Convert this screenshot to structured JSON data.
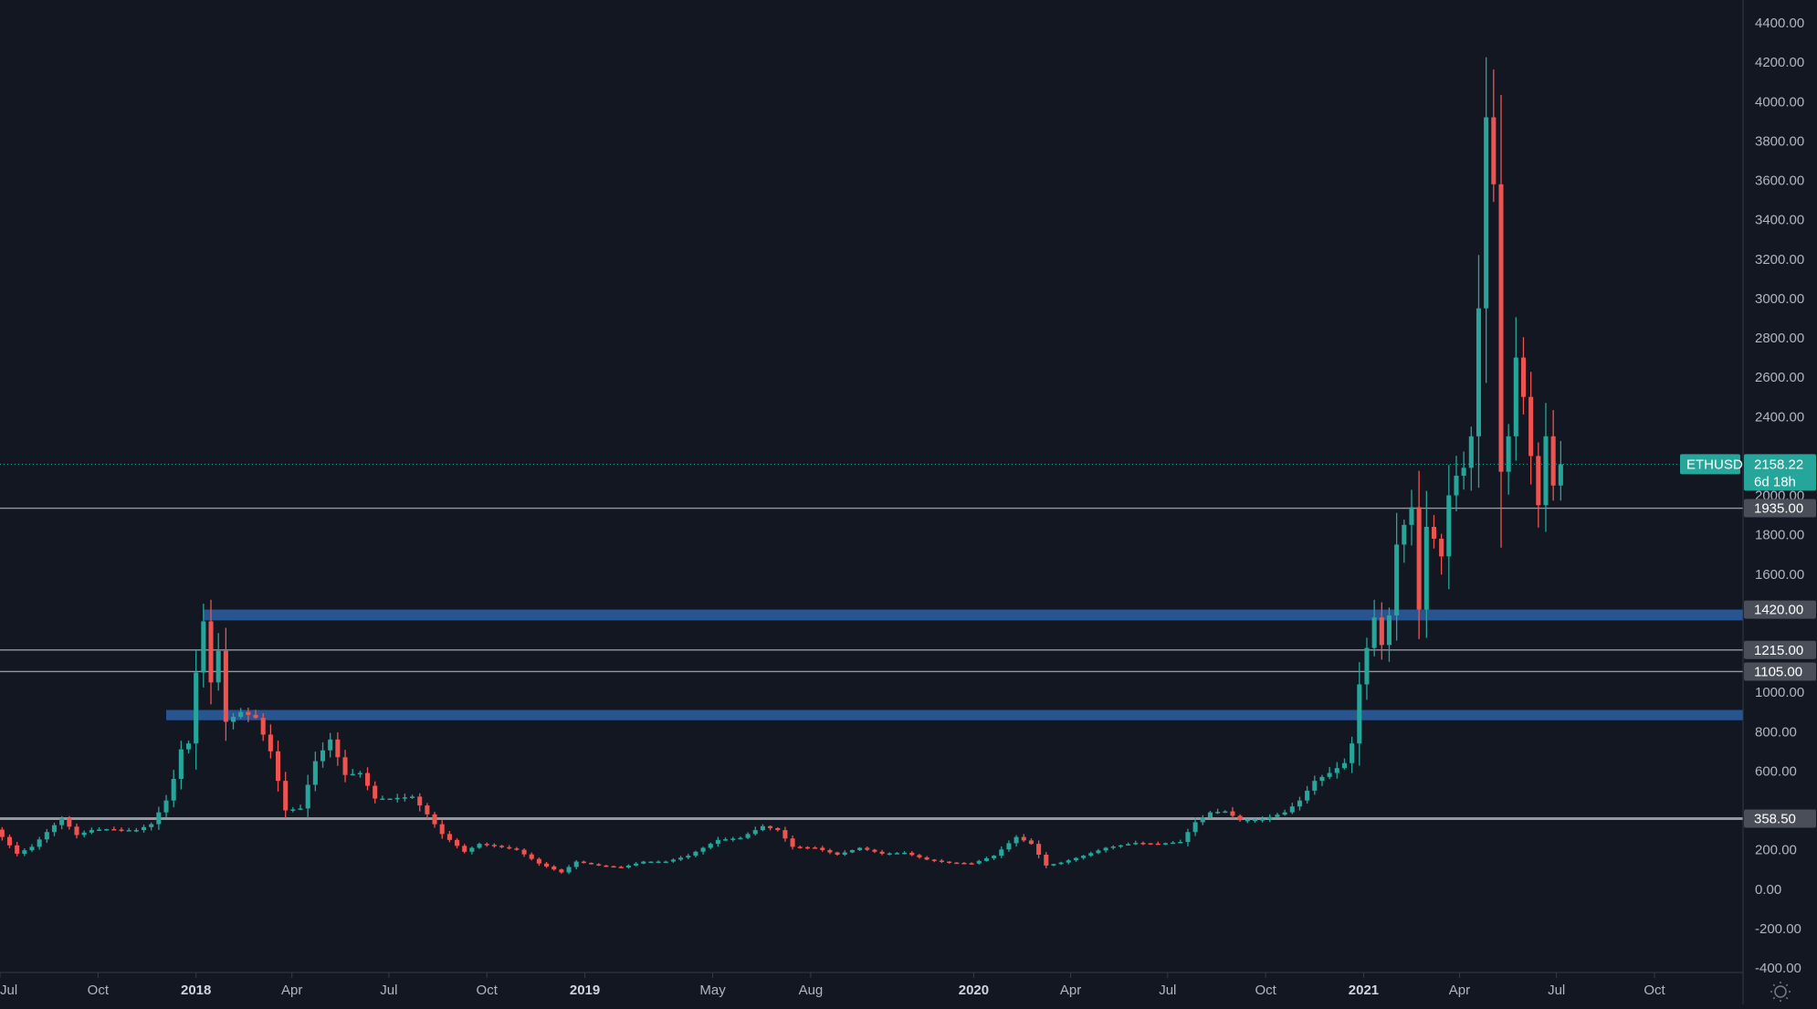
{
  "chart_data": {
    "type": "candlestick",
    "symbol": "ETHUSD",
    "y_axis": {
      "min": -400,
      "max": 4400,
      "ticks": [
        "4400.00",
        "4200.00",
        "4000.00",
        "3800.00",
        "3600.00",
        "3400.00",
        "3200.00",
        "3000.00",
        "2800.00",
        "2600.00",
        "2400.00",
        "2000.00",
        "1800.00",
        "1600.00",
        "1000.00",
        "800.00",
        "600.00",
        "200.00",
        "0.00",
        "-200.00",
        "-400.00"
      ]
    },
    "x_axis": {
      "ticks": [
        {
          "label": "Jul",
          "date": "2017-07-01",
          "bold": false
        },
        {
          "label": "Oct",
          "date": "2017-10-01",
          "bold": false
        },
        {
          "label": "2018",
          "date": "2018-01-01",
          "bold": true
        },
        {
          "label": "Apr",
          "date": "2018-04-01",
          "bold": false
        },
        {
          "label": "Jul",
          "date": "2018-07-01",
          "bold": false
        },
        {
          "label": "Oct",
          "date": "2018-10-01",
          "bold": false
        },
        {
          "label": "2019",
          "date": "2019-01-01",
          "bold": true
        },
        {
          "label": "May",
          "date": "2019-05-01",
          "bold": false
        },
        {
          "label": "Aug",
          "date": "2019-08-01",
          "bold": false
        },
        {
          "label": "2020",
          "date": "2020-01-01",
          "bold": true
        },
        {
          "label": "Apr",
          "date": "2020-04-01",
          "bold": false
        },
        {
          "label": "Jul",
          "date": "2020-07-01",
          "bold": false
        },
        {
          "label": "Oct",
          "date": "2020-10-01",
          "bold": false
        },
        {
          "label": "2021",
          "date": "2021-01-01",
          "bold": true
        },
        {
          "label": "Apr",
          "date": "2021-04-01",
          "bold": false
        },
        {
          "label": "Jul",
          "date": "2021-07-01",
          "bold": false
        },
        {
          "label": "Oct",
          "date": "2021-10-01",
          "bold": false
        }
      ]
    },
    "last_price": {
      "value": 2158.22,
      "label": "2158.22",
      "countdown": "6d 18h"
    },
    "levels": [
      {
        "value": 1935,
        "label": "1935.00",
        "kind": "line"
      },
      {
        "value": 1420,
        "label": "1420.00",
        "kind": "zone",
        "from": 1365,
        "to": 1420,
        "start_date": "2018-01-08"
      },
      {
        "value": 1215,
        "label": "1215.00",
        "kind": "line"
      },
      {
        "value": 1105,
        "label": "1105.00",
        "kind": "line"
      },
      {
        "value": 900,
        "label": "",
        "kind": "zone",
        "from": 858,
        "to": 910,
        "start_date": "2017-12-04"
      },
      {
        "value": 358.5,
        "label": "358.50",
        "kind": "line"
      }
    ],
    "colors": {
      "background": "#131722",
      "up": "#26a69a",
      "down": "#ef5350",
      "zone": "#2a5a9a",
      "level_line": "#9598a1",
      "last_price": "#26a69a"
    },
    "anchors": [
      [
        "2017-06-19",
        340
      ],
      [
        "2017-07-03",
        265
      ],
      [
        "2017-07-17",
        180
      ],
      [
        "2017-07-31",
        215
      ],
      [
        "2017-08-14",
        290
      ],
      [
        "2017-08-28",
        360
      ],
      [
        "2017-09-11",
        275
      ],
      [
        "2017-09-25",
        300
      ],
      [
        "2017-10-09",
        305
      ],
      [
        "2017-10-23",
        300
      ],
      [
        "2017-11-06",
        300
      ],
      [
        "2017-11-20",
        330
      ],
      [
        "2017-12-04",
        450
      ],
      [
        "2017-12-11",
        560
      ],
      [
        "2017-12-18",
        710
      ],
      [
        "2017-12-25",
        740
      ],
      [
        "2018-01-01",
        1100
      ],
      [
        "2018-01-08",
        1360
      ],
      [
        "2018-01-15",
        1050
      ],
      [
        "2018-01-22",
        1210
      ],
      [
        "2018-01-29",
        850
      ],
      [
        "2018-02-12",
        900
      ],
      [
        "2018-02-26",
        870
      ],
      [
        "2018-03-12",
        700
      ],
      [
        "2018-03-26",
        400
      ],
      [
        "2018-04-09",
        410
      ],
      [
        "2018-04-23",
        650
      ],
      [
        "2018-05-07",
        760
      ],
      [
        "2018-05-21",
        580
      ],
      [
        "2018-06-04",
        590
      ],
      [
        "2018-06-18",
        460
      ],
      [
        "2018-07-02",
        460
      ],
      [
        "2018-07-23",
        470
      ],
      [
        "2018-08-06",
        380
      ],
      [
        "2018-08-20",
        280
      ],
      [
        "2018-09-10",
        190
      ],
      [
        "2018-09-24",
        230
      ],
      [
        "2018-10-08",
        220
      ],
      [
        "2018-10-29",
        200
      ],
      [
        "2018-11-19",
        130
      ],
      [
        "2018-12-10",
        85
      ],
      [
        "2018-12-24",
        140
      ],
      [
        "2019-01-14",
        120
      ],
      [
        "2019-02-04",
        110
      ],
      [
        "2019-02-25",
        140
      ],
      [
        "2019-03-18",
        140
      ],
      [
        "2019-04-08",
        170
      ],
      [
        "2019-05-06",
        250
      ],
      [
        "2019-05-27",
        260
      ],
      [
        "2019-06-17",
        320
      ],
      [
        "2019-07-01",
        300
      ],
      [
        "2019-07-15",
        215
      ],
      [
        "2019-08-05",
        210
      ],
      [
        "2019-08-26",
        175
      ],
      [
        "2019-09-16",
        210
      ],
      [
        "2019-10-07",
        180
      ],
      [
        "2019-10-28",
        185
      ],
      [
        "2019-11-18",
        150
      ],
      [
        "2019-12-09",
        135
      ],
      [
        "2019-12-30",
        130
      ],
      [
        "2020-01-20",
        170
      ],
      [
        "2020-02-10",
        265
      ],
      [
        "2020-02-24",
        230
      ],
      [
        "2020-03-09",
        120
      ],
      [
        "2020-03-23",
        135
      ],
      [
        "2020-04-13",
        170
      ],
      [
        "2020-05-04",
        210
      ],
      [
        "2020-06-01",
        235
      ],
      [
        "2020-06-22",
        230
      ],
      [
        "2020-07-13",
        240
      ],
      [
        "2020-07-27",
        340
      ],
      [
        "2020-08-10",
        390
      ],
      [
        "2020-08-24",
        395
      ],
      [
        "2020-09-07",
        350
      ],
      [
        "2020-09-28",
        355
      ],
      [
        "2020-10-19",
        390
      ],
      [
        "2020-11-02",
        450
      ],
      [
        "2020-11-16",
        550
      ],
      [
        "2020-11-30",
        590
      ],
      [
        "2020-12-14",
        640
      ],
      [
        "2020-12-21",
        740
      ],
      [
        "2020-12-28",
        1040
      ],
      [
        "2021-01-04",
        1225
      ],
      [
        "2021-01-11",
        1380
      ],
      [
        "2021-01-18",
        1240
      ],
      [
        "2021-01-25",
        1390
      ],
      [
        "2021-02-01",
        1750
      ],
      [
        "2021-02-08",
        1850
      ],
      [
        "2021-02-15",
        1940
      ],
      [
        "2021-02-22",
        1420
      ],
      [
        "2021-03-01",
        1840
      ],
      [
        "2021-03-08",
        1780
      ],
      [
        "2021-03-15",
        1690
      ],
      [
        "2021-03-22",
        2000
      ],
      [
        "2021-03-29",
        2100
      ],
      [
        "2021-04-05",
        2140
      ],
      [
        "2021-04-12",
        2300
      ],
      [
        "2021-04-19",
        2950
      ],
      [
        "2021-04-26",
        3920
      ],
      [
        "2021-05-03",
        3580
      ],
      [
        "2021-05-10",
        2120
      ],
      [
        "2021-05-17",
        2300
      ],
      [
        "2021-05-24",
        2700
      ],
      [
        "2021-05-31",
        2500
      ],
      [
        "2021-06-07",
        2200
      ],
      [
        "2021-06-14",
        1950
      ],
      [
        "2021-06-21",
        2300
      ],
      [
        "2021-06-28",
        2050
      ],
      [
        "2021-07-05",
        2158
      ]
    ]
  }
}
